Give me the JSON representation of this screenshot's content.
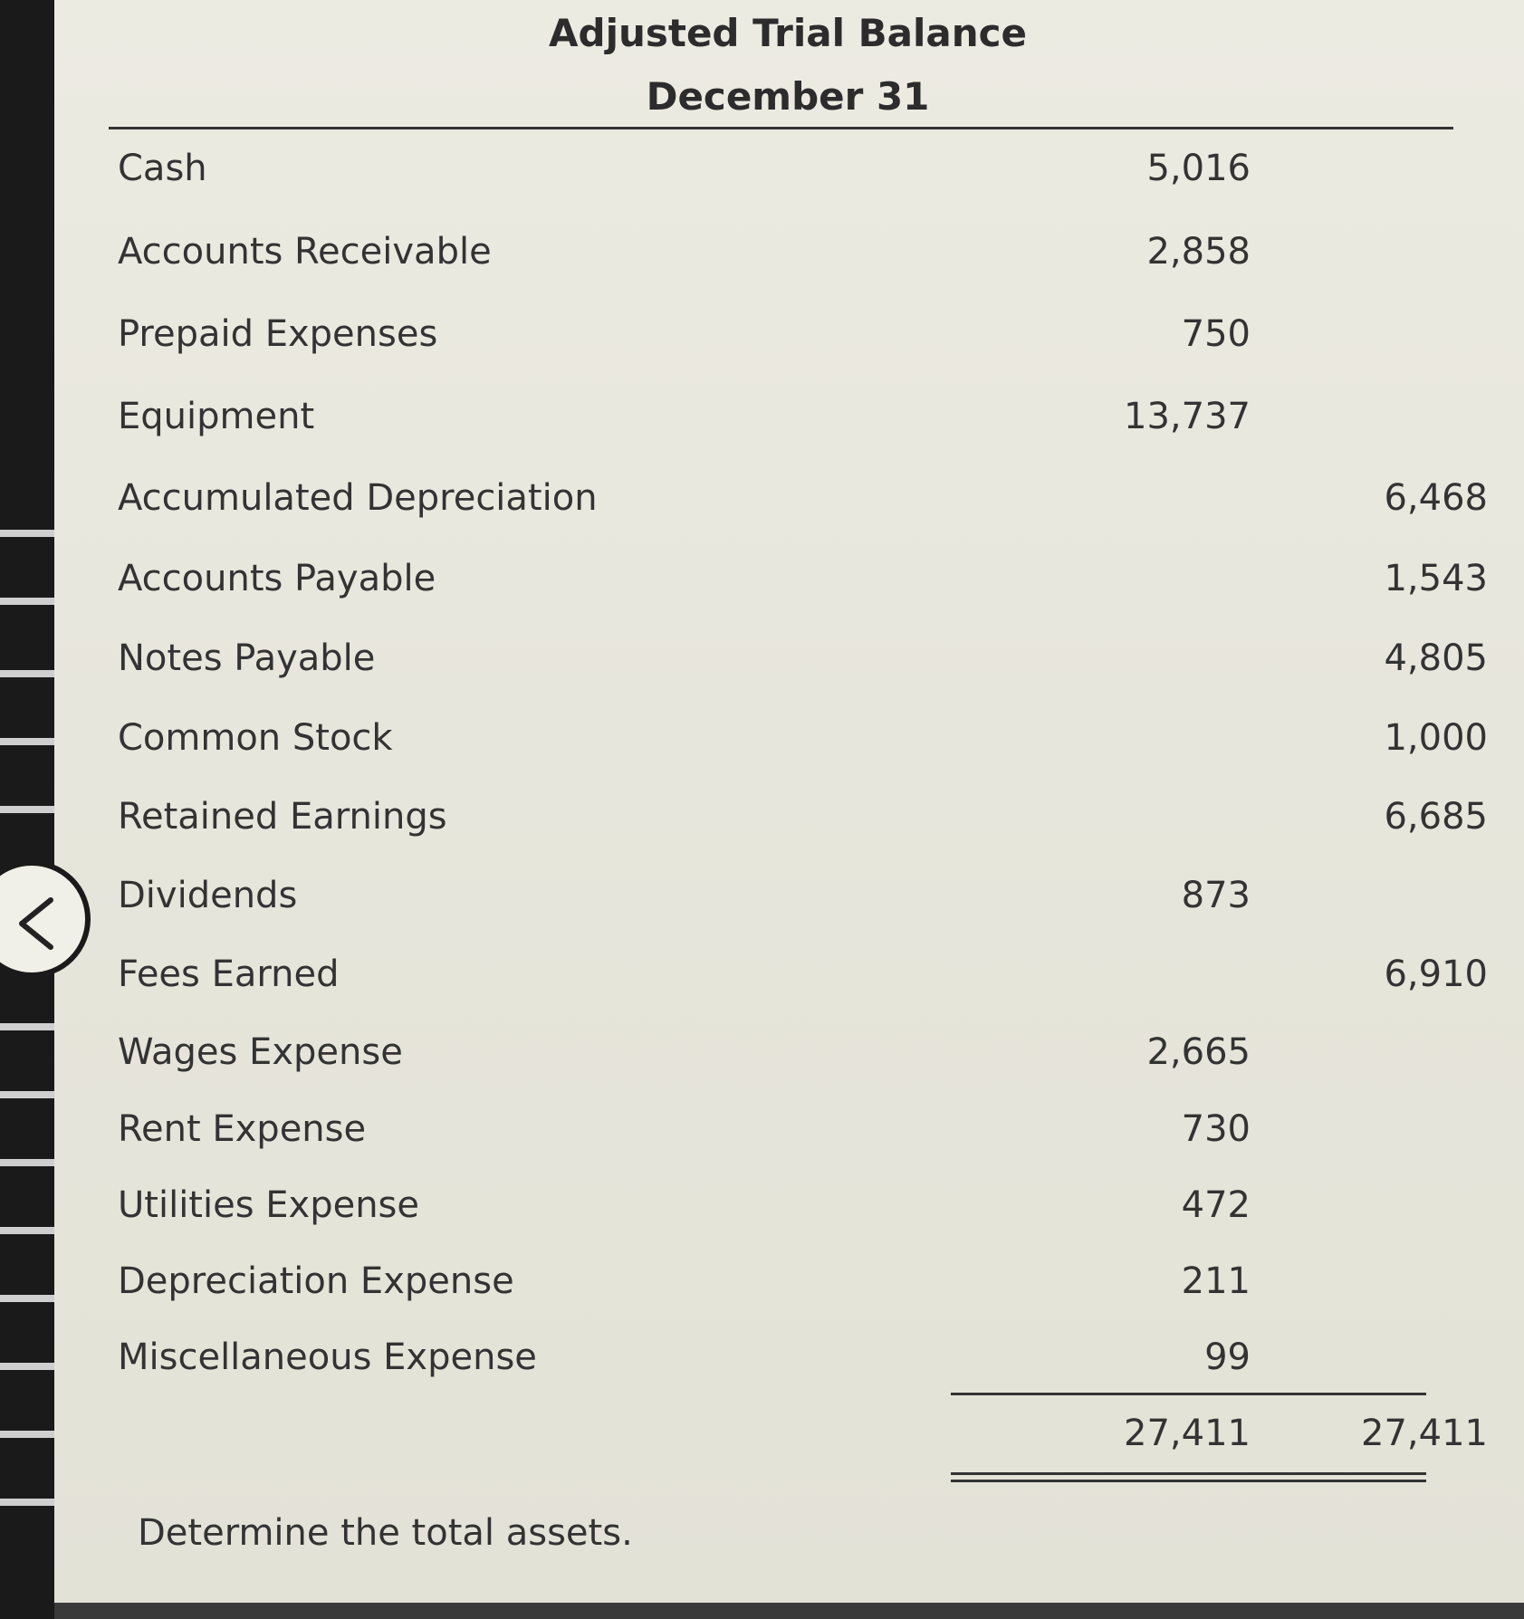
{
  "report": {
    "title": "Adjusted Trial Balance",
    "date": "December 31"
  },
  "accounts": [
    {
      "name": "Cash",
      "debit": "5,016",
      "credit": ""
    },
    {
      "name": "Accounts Receivable",
      "debit": "2,858",
      "credit": ""
    },
    {
      "name": "Prepaid Expenses",
      "debit": "750",
      "credit": ""
    },
    {
      "name": "Equipment",
      "debit": "13,737",
      "credit": ""
    },
    {
      "name": "Accumulated Depreciation",
      "debit": "",
      "credit": "6,468"
    },
    {
      "name": "Accounts Payable",
      "debit": "",
      "credit": "1,543"
    },
    {
      "name": "Notes Payable",
      "debit": "",
      "credit": "4,805"
    },
    {
      "name": "Common Stock",
      "debit": "",
      "credit": "1,000"
    },
    {
      "name": "Retained Earnings",
      "debit": "",
      "credit": "6,685"
    },
    {
      "name": "Dividends",
      "debit": "873",
      "credit": ""
    },
    {
      "name": "Fees Earned",
      "debit": "",
      "credit": "6,910"
    },
    {
      "name": "Wages Expense",
      "debit": "2,665",
      "credit": ""
    },
    {
      "name": "Rent Expense",
      "debit": "730",
      "credit": ""
    },
    {
      "name": "Utilities Expense",
      "debit": "472",
      "credit": ""
    },
    {
      "name": "Depreciation Expense",
      "debit": "211",
      "credit": ""
    },
    {
      "name": "Miscellaneous Expense",
      "debit": "99",
      "credit": ""
    }
  ],
  "totals": {
    "debit": "27,411",
    "credit": "27,411"
  },
  "question": "Determine the total assets.",
  "nav": {
    "back_icon": "chevron-left-icon"
  }
}
